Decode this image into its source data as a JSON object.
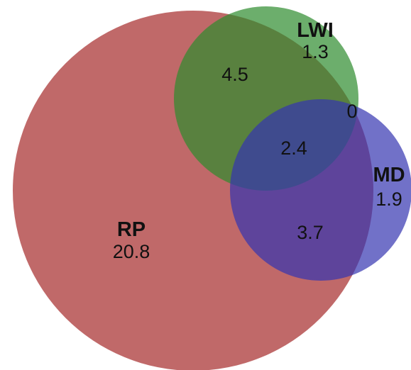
{
  "venn": {
    "sets": {
      "rp": {
        "name": "RP",
        "value": "20.8",
        "color": "#a52a2a"
      },
      "lwi": {
        "name": "LWI",
        "value": "1.3",
        "color": "#2e8b2e"
      },
      "md": {
        "name": "MD",
        "value": "1.9",
        "color": "#3535b0"
      }
    },
    "intersections": {
      "rp_lwi": "4.5",
      "lwi_md": "0",
      "rp_lwi_md": "2.4",
      "rp_md": "3.7"
    }
  }
}
